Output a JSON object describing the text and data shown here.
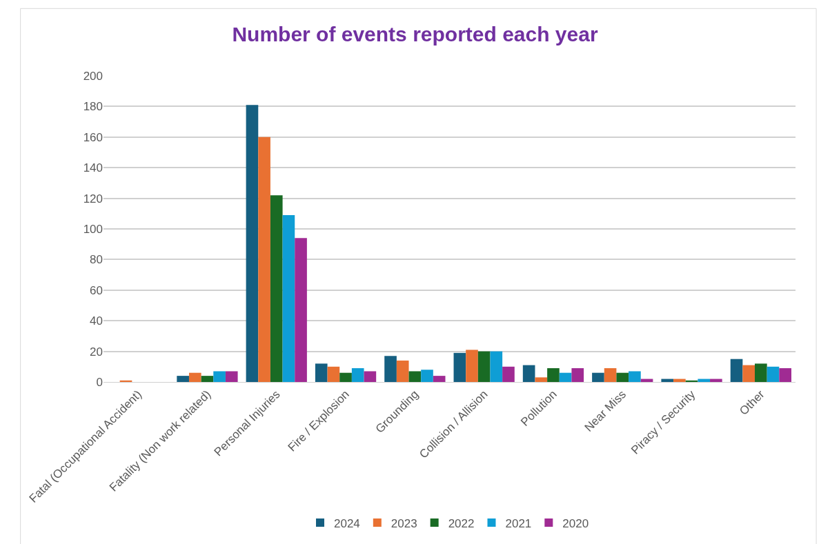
{
  "chart_data": {
    "type": "bar",
    "title": "Number of events reported each year",
    "categories": [
      "Fatal (Occupational Accident)",
      "Fatality (Non work related)",
      "Personal Injuries",
      "Fire / Explosion",
      "Grounding",
      "Collision / Allision",
      "Pollution",
      "Near Miss",
      "Piracy / Security",
      "Other"
    ],
    "series": [
      {
        "name": "2024",
        "color": "#155f81",
        "values": [
          0,
          4,
          181,
          12,
          17,
          19,
          11,
          6,
          2,
          15
        ]
      },
      {
        "name": "2023",
        "color": "#e97132",
        "values": [
          1,
          6,
          160,
          10,
          14,
          21,
          3,
          9,
          2,
          11
        ]
      },
      {
        "name": "2022",
        "color": "#196b24",
        "values": [
          0,
          4,
          122,
          6,
          7,
          20,
          9,
          6,
          1,
          12
        ]
      },
      {
        "name": "2021",
        "color": "#0f9ed5",
        "values": [
          0,
          7,
          109,
          9,
          8,
          20,
          6,
          7,
          2,
          10
        ]
      },
      {
        "name": "2020",
        "color": "#a02b93",
        "values": [
          0,
          7,
          94,
          7,
          4,
          10,
          9,
          2,
          2,
          9
        ]
      }
    ],
    "ylim": [
      0,
      200
    ],
    "yticks": [
      0,
      20,
      40,
      60,
      80,
      100,
      120,
      140,
      160,
      180,
      200
    ],
    "grid": "y",
    "legend": "bottom"
  }
}
